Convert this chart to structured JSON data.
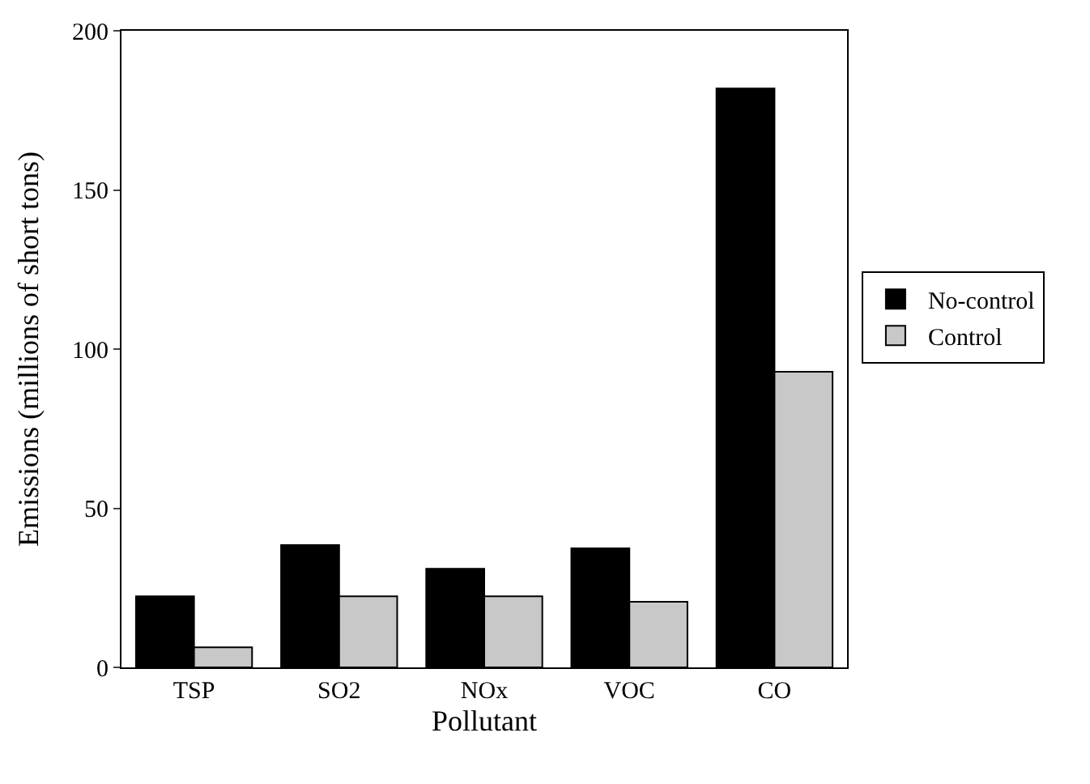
{
  "chart_data": {
    "type": "bar",
    "xlabel": "Pollutant",
    "ylabel": "Emissions (millions of short tons)",
    "categories": [
      "TSP",
      "SO2",
      "NOx",
      "VOC",
      "CO"
    ],
    "series": [
      {
        "name": "No-control",
        "color": "#000000",
        "values": [
          22.3,
          38.4,
          31.0,
          37.4,
          181.9
        ]
      },
      {
        "name": "Control",
        "color": "#c8c8c8",
        "values": [
          6.3,
          22.3,
          22.3,
          20.6,
          92.9
        ]
      }
    ],
    "ylim": [
      0,
      200
    ],
    "yticks": [
      0,
      50,
      100,
      150,
      200
    ],
    "legend": "right"
  }
}
